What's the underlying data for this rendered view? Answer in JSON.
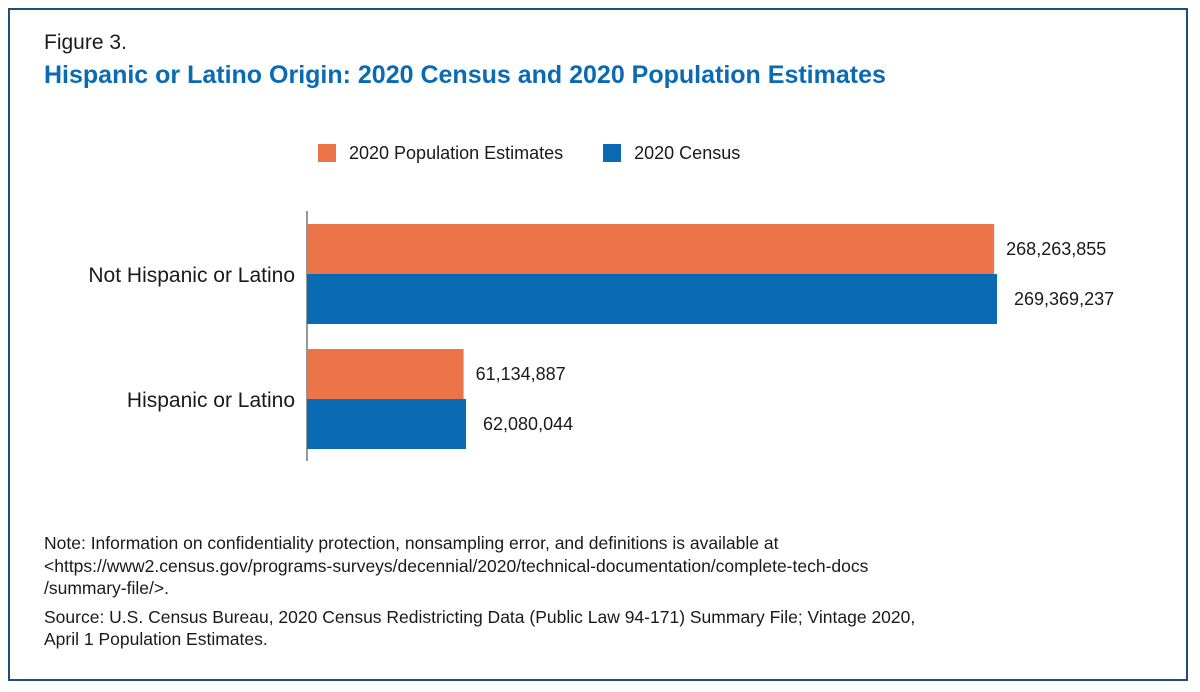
{
  "figure_label": "Figure 3.",
  "title": "Hispanic or Latino Origin: 2020 Census and 2020 Population Estimates",
  "colors": {
    "estimates": "#ec7449",
    "census": "#0a6ab3",
    "title": "#0a6ab3"
  },
  "legend": [
    {
      "name": "2020 Population Estimates",
      "color": "#ec7449"
    },
    {
      "name": "2020 Census",
      "color": "#0a6ab3"
    }
  ],
  "chart_data": {
    "type": "bar",
    "orientation": "horizontal",
    "title": "Hispanic or Latino Origin: 2020 Census and 2020 Population Estimates",
    "categories": [
      "Not Hispanic or Latino",
      "Hispanic or Latino"
    ],
    "series": [
      {
        "name": "2020 Population Estimates",
        "values": [
          268263855,
          61134887
        ],
        "labels": [
          "268,263,855",
          "61,134,887"
        ]
      },
      {
        "name": "2020 Census",
        "values": [
          269369237,
          62080044
        ],
        "labels": [
          "269,369,237",
          "62,080,044"
        ]
      }
    ],
    "xlim": [
      0,
      269369237
    ],
    "xlabel": "",
    "ylabel": "",
    "grid": false,
    "legend_position": "top"
  },
  "note": {
    "lines": [
      "Note: Information on confidentiality protection, nonsampling error, and definitions is available at",
      "<https://www2.census.gov/programs-surveys/decennial/2020/technical-documentation/complete-tech-docs",
      "/summary-file/>."
    ]
  },
  "source": {
    "lines": [
      "Source: U.S. Census Bureau, 2020 Census Redistricting Data (Public Law 94-171) Summary File; Vintage 2020,",
      "April 1 Population Estimates."
    ]
  }
}
